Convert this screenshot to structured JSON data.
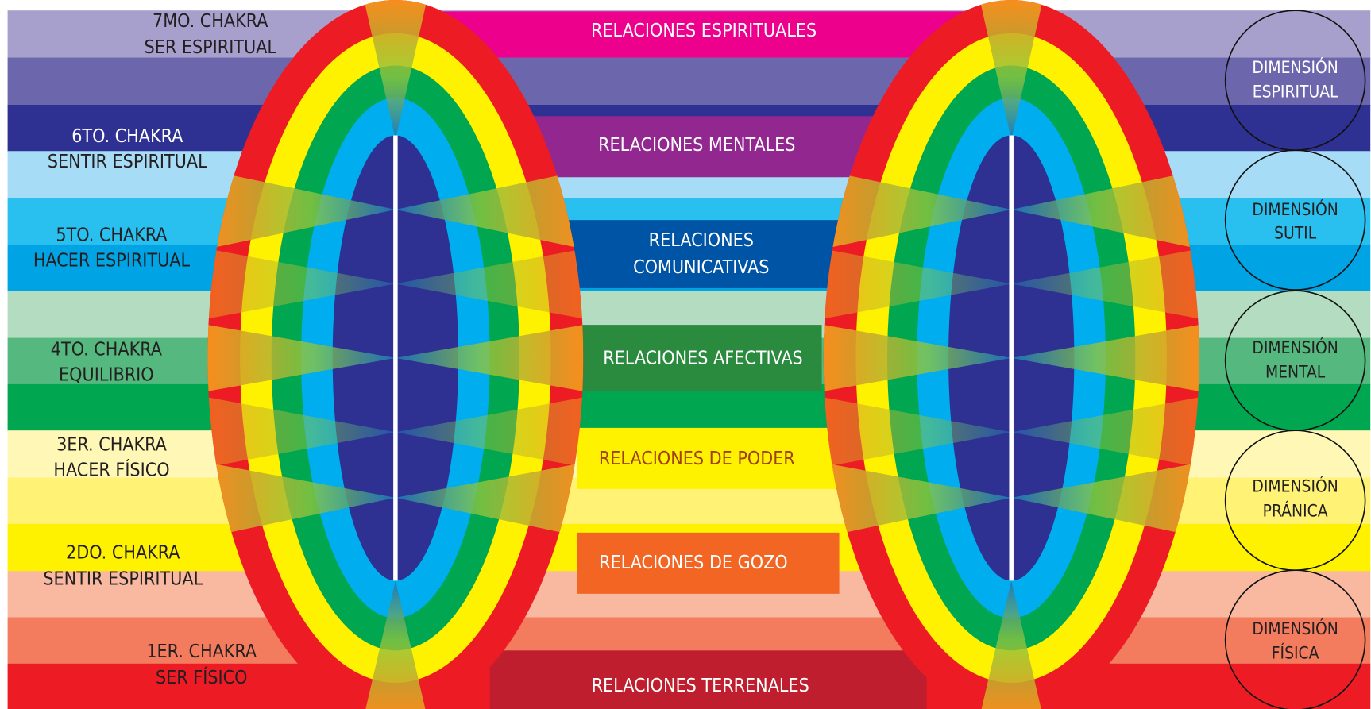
{
  "chakras": [
    {
      "lines": [
        "7MO. CHAKRA",
        "SER ESPIRITUAL"
      ]
    },
    {
      "lines": [
        "6TO. CHAKRA",
        "SENTIR ESPIRITUAL"
      ]
    },
    {
      "lines": [
        "5TO. CHAKRA",
        "HACER ESPIRITUAL"
      ]
    },
    {
      "lines": [
        "4TO. CHAKRA",
        "EQUILIBRIO"
      ]
    },
    {
      "lines": [
        "3ER. CHAKRA",
        "HACER FÍSICO"
      ]
    },
    {
      "lines": [
        "2DO. CHAKRA",
        "SENTIR ESPIRITUAL"
      ]
    },
    {
      "lines": [
        "1ER. CHAKRA",
        "SER FÍSICO"
      ]
    }
  ],
  "relations": [
    {
      "lines": [
        "RELACIONES ESPIRITUALES"
      ]
    },
    {
      "lines": [
        "RELACIONES  MENTALES"
      ]
    },
    {
      "lines": [
        "RELACIONES",
        "COMUNICATIVAS"
      ]
    },
    {
      "lines": [
        "RELACIONES AFECTIVAS"
      ]
    },
    {
      "lines": [
        "RELACIONES DE PODER"
      ]
    },
    {
      "lines": [
        "RELACIONES DE GOZO"
      ]
    },
    {
      "lines": [
        "RELACIONES TERRENALES"
      ]
    }
  ],
  "dimensions": [
    {
      "lines": [
        "DIMENSIÓN",
        "ESPIRITUAL"
      ]
    },
    {
      "lines": [
        "DIMENSIÓN",
        "SUTIL"
      ]
    },
    {
      "lines": [
        "DIMENSIÓN",
        "MENTAL"
      ]
    },
    {
      "lines": [
        "DIMENSIÓN",
        "PRÁNICA"
      ]
    },
    {
      "lines": [
        "DIMENSIÓN",
        "FÍSICA"
      ]
    }
  ]
}
